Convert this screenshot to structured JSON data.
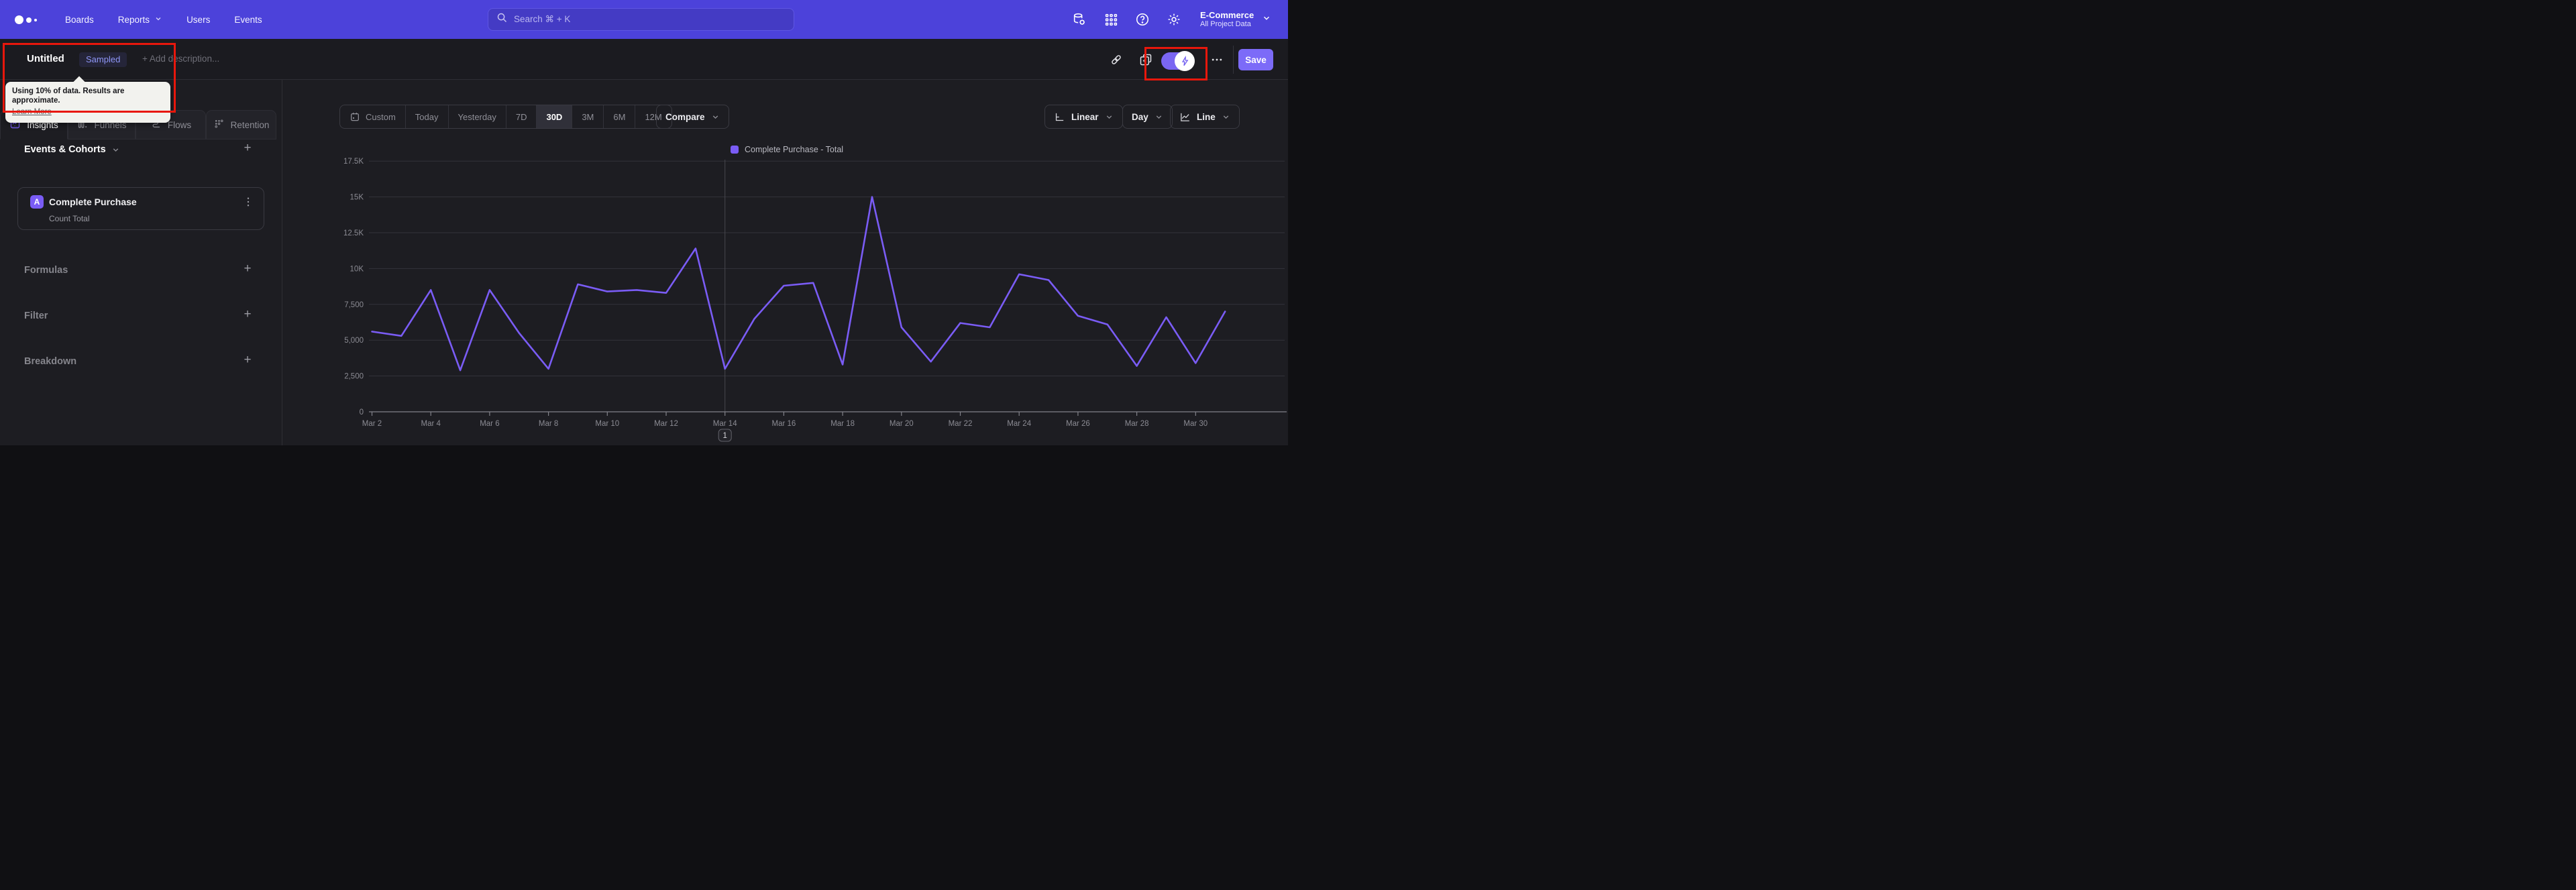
{
  "nav": {
    "links": [
      {
        "label": "Boards",
        "chevron": false
      },
      {
        "label": "Reports",
        "chevron": true
      },
      {
        "label": "Users",
        "chevron": false
      },
      {
        "label": "Events",
        "chevron": false
      }
    ],
    "search_placeholder": "Search  ⌘ + K",
    "project": {
      "name": "E-Commerce",
      "scope": "All Project Data"
    }
  },
  "toolbar": {
    "title": "Untitled",
    "badge": "Sampled",
    "add_description": "+ Add description...",
    "save_label": "Save",
    "sampling_tooltip": {
      "text": "Using 10% of data. Results are approximate.",
      "link": "Learn More"
    }
  },
  "sidebar": {
    "tabs": [
      {
        "label": "Insights",
        "icon": "insights-icon",
        "active": true
      },
      {
        "label": "Funnels",
        "icon": "funnels-icon",
        "active": false
      },
      {
        "label": "Flows",
        "icon": "flows-icon",
        "active": false
      },
      {
        "label": "Retention",
        "icon": "retention-icon",
        "active": false
      }
    ],
    "events_section": {
      "title": "Events & Cohorts",
      "items": [
        {
          "letter": "A",
          "name": "Complete Purchase",
          "metric": "Count Total"
        }
      ]
    },
    "sections": [
      {
        "title": "Formulas"
      },
      {
        "title": "Filter"
      },
      {
        "title": "Breakdown"
      }
    ]
  },
  "controls": {
    "ranges": [
      "Custom",
      "Today",
      "Yesterday",
      "7D",
      "30D",
      "3M",
      "6M",
      "12M"
    ],
    "active_range": "30D",
    "compare_label": "Compare",
    "scale_label": "Linear",
    "interval_label": "Day",
    "chart_type_label": "Line"
  },
  "chart_data": {
    "type": "line",
    "legend": "Complete Purchase - Total",
    "legend_position": "top-center",
    "series_color": "#7a5cf5",
    "grid": true,
    "ylim": [
      0,
      17500
    ],
    "y_ticks": [
      {
        "label": "0",
        "value": 0
      },
      {
        "label": "2,500",
        "value": 2500
      },
      {
        "label": "5,000",
        "value": 5000
      },
      {
        "label": "7,500",
        "value": 7500
      },
      {
        "label": "10K",
        "value": 10000
      },
      {
        "label": "12.5K",
        "value": 12500
      },
      {
        "label": "15K",
        "value": 15000
      },
      {
        "label": "17.5K",
        "value": 17500
      }
    ],
    "x": [
      "Mar 2",
      "Mar 3",
      "Mar 4",
      "Mar 5",
      "Mar 6",
      "Mar 7",
      "Mar 8",
      "Mar 9",
      "Mar 10",
      "Mar 11",
      "Mar 12",
      "Mar 13",
      "Mar 14",
      "Mar 15",
      "Mar 16",
      "Mar 17",
      "Mar 18",
      "Mar 19",
      "Mar 20",
      "Mar 21",
      "Mar 22",
      "Mar 23",
      "Mar 24",
      "Mar 25",
      "Mar 26",
      "Mar 27",
      "Mar 28",
      "Mar 29",
      "Mar 30",
      "Mar 31"
    ],
    "x_tick_labels": [
      "Mar 2",
      "Mar 4",
      "Mar 6",
      "Mar 8",
      "Mar 10",
      "Mar 12",
      "Mar 14",
      "Mar 16",
      "Mar 18",
      "Mar 20",
      "Mar 22",
      "Mar 24",
      "Mar 26",
      "Mar 28",
      "Mar 30"
    ],
    "values": [
      5600,
      5300,
      8500,
      2900,
      8500,
      5500,
      3000,
      8900,
      8400,
      8500,
      8300,
      11400,
      3000,
      6500,
      8800,
      9000,
      3300,
      15000,
      5900,
      3500,
      6200,
      5900,
      9600,
      9200,
      6700,
      6100,
      3200,
      6600,
      3400,
      7000
    ],
    "annotation": {
      "label": "1",
      "x": "Mar 14"
    }
  },
  "colors": {
    "nav_bg": "#4c42da",
    "page_bg": "#1d1d22",
    "accent_purple": "#7a5cf5",
    "save_purple": "#7c6bf8",
    "annotation_red": "#e8170c",
    "grid_line": "#33333b",
    "axis_text": "#8b8b93"
  }
}
